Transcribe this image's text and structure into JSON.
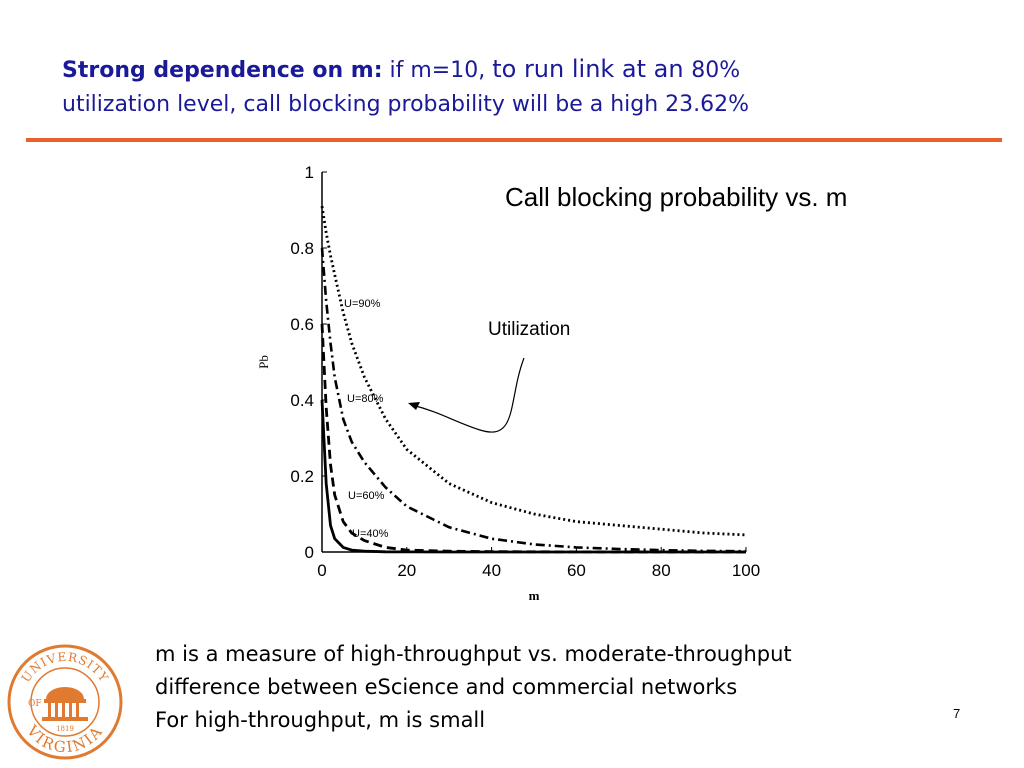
{
  "heading": {
    "lead": "Strong dependence on m:",
    "part1": " if m=10, ",
    "part2": "to run link at  an ",
    "part3": "80%",
    "line2": "utilization level, call blocking probability will be a high 23.62%"
  },
  "chart_title": "Call blocking probability vs. m",
  "annotation": "Utilization",
  "chart_data": {
    "type": "line",
    "xlabel": "m",
    "ylabel": "Pb",
    "xlim": [
      0,
      100
    ],
    "ylim": [
      0,
      1
    ],
    "xticks": [
      "0",
      "20",
      "40",
      "60",
      "80",
      "100"
    ],
    "yticks": [
      "0",
      "0.2",
      "0.4",
      "0.6",
      "0.8",
      "1"
    ],
    "series": [
      {
        "name": "U=90%",
        "style": "dotted",
        "x": [
          0,
          1,
          2,
          3,
          5,
          7,
          10,
          15,
          20,
          30,
          40,
          50,
          60,
          70,
          80,
          90,
          100
        ],
        "y": [
          0.91,
          0.84,
          0.78,
          0.73,
          0.63,
          0.55,
          0.46,
          0.35,
          0.27,
          0.18,
          0.13,
          0.1,
          0.08,
          0.07,
          0.06,
          0.05,
          0.045
        ]
      },
      {
        "name": "U=80%",
        "style": "dash-dot",
        "x": [
          0,
          1,
          2,
          3,
          5,
          7,
          10,
          15,
          20,
          30,
          40,
          50,
          60,
          70,
          80,
          90,
          100
        ],
        "y": [
          0.8,
          0.66,
          0.55,
          0.46,
          0.35,
          0.29,
          0.2362,
          0.17,
          0.12,
          0.065,
          0.035,
          0.02,
          0.012,
          0.008,
          0.005,
          0.003,
          0.002
        ]
      },
      {
        "name": "U=60%",
        "style": "dashed",
        "x": [
          0,
          1,
          2,
          3,
          5,
          7,
          10,
          15,
          20,
          30,
          40,
          50,
          60,
          100
        ],
        "y": [
          0.6,
          0.38,
          0.23,
          0.15,
          0.08,
          0.05,
          0.03,
          0.012,
          0.005,
          0.002,
          0.001,
          0.0005,
          0.0003,
          0.0
        ]
      },
      {
        "name": "U=40%",
        "style": "solid",
        "x": [
          0,
          1,
          2,
          3,
          5,
          7,
          10,
          15,
          20,
          30,
          50,
          100
        ],
        "y": [
          0.4,
          0.18,
          0.07,
          0.035,
          0.012,
          0.005,
          0.002,
          0.0005,
          0.0002,
          0.0,
          0.0,
          0.0
        ]
      }
    ],
    "labels": [
      "U=90%",
      "U=80%",
      "U=60%",
      "U=40%"
    ],
    "grid": false
  },
  "notes": [
    "m is a measure of high-throughput vs. moderate-throughput",
    "difference between eScience and commercial networks",
    "For high-throughput, m is small"
  ],
  "logo": {
    "top_text": "UNIVERSITY",
    "of_text": "OF",
    "bottom_text": "VIRGINIA",
    "year": "1819"
  },
  "page_number": "7",
  "colors": {
    "heading": "#1a1a99",
    "rule": "#e8602c",
    "logo": "#e07a30"
  }
}
